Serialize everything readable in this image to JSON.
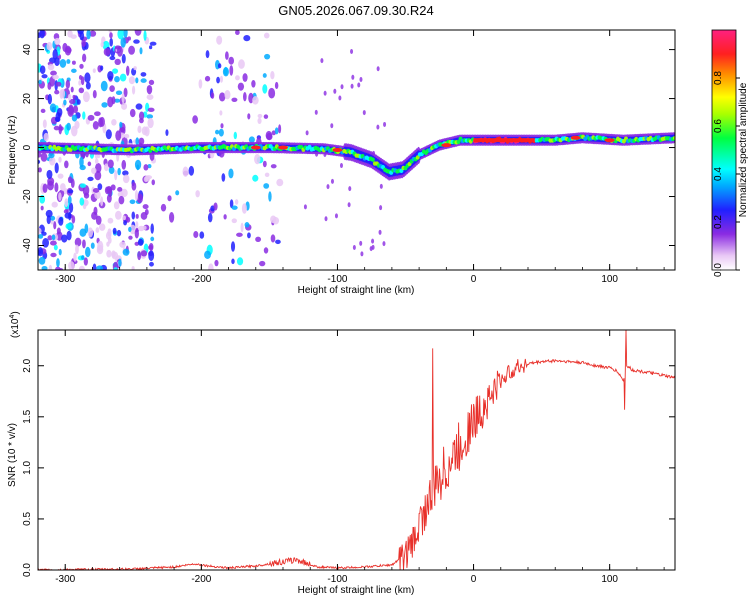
{
  "chart_data": [
    {
      "type": "heatmap",
      "title": "GN05.2026.067.09.30.R24",
      "xlabel": "Height of straight line (km)",
      "ylabel": "Frequency (Hz)",
      "xlim": [
        -320,
        148
      ],
      "ylim": [
        -50,
        48
      ],
      "xticks": [
        -300,
        -200,
        -100,
        0,
        100
      ],
      "yticks": [
        -40,
        -20,
        0,
        20,
        40
      ],
      "colorbar": {
        "label": "Normalized spectral amplitude",
        "range": [
          0,
          1
        ],
        "ticks": [
          0.0,
          0.2,
          0.4,
          0.6,
          0.8
        ],
        "tick_labels": [
          "0.0",
          "0.2",
          "0.4",
          "0.6",
          "0.8"
        ]
      },
      "ridge": [
        {
          "x": -320,
          "f": 0
        },
        {
          "x": -250,
          "f": -1
        },
        {
          "x": -200,
          "f": 0
        },
        {
          "x": -150,
          "f": 0
        },
        {
          "x": -110,
          "f": -0.5
        },
        {
          "x": -90,
          "f": -2
        },
        {
          "x": -75,
          "f": -5
        },
        {
          "x": -62,
          "f": -10
        },
        {
          "x": -52,
          "f": -9
        },
        {
          "x": -40,
          "f": -3
        },
        {
          "x": -25,
          "f": 1
        },
        {
          "x": -10,
          "f": 3
        },
        {
          "x": 0,
          "f": 3
        },
        {
          "x": 40,
          "f": 3
        },
        {
          "x": 60,
          "f": 3
        },
        {
          "x": 80,
          "f": 4
        },
        {
          "x": 110,
          "f": 3
        },
        {
          "x": 148,
          "f": 4
        }
      ]
    },
    {
      "type": "line",
      "xlabel": "Height of straight line (km)",
      "ylabel": "SNR (10 * v/v)",
      "multiplier_label": "(x10",
      "multiplier_exp": "4",
      "multiplier_close": ")",
      "xlim": [
        -320,
        148
      ],
      "ylim": [
        0,
        2.35
      ],
      "xticks": [
        -300,
        -200,
        -100,
        0,
        100
      ],
      "yticks": [
        0.0,
        0.5,
        1.0,
        1.5,
        2.0
      ],
      "ytick_labels": [
        "0.0",
        "0.5",
        "1.0",
        "1.5",
        "2.0"
      ],
      "color": "#e8302a",
      "series": [
        {
          "name": "SNR",
          "x": [
            -320,
            -250,
            -220,
            -205,
            -195,
            -180,
            -160,
            -140,
            -130,
            -115,
            -100,
            -80,
            -70,
            -60,
            -50,
            -45,
            -40,
            -35,
            -30,
            -25,
            -20,
            -15,
            -10,
            -5,
            0,
            5,
            10,
            15,
            20,
            25,
            30,
            35,
            40,
            50,
            60,
            70,
            80,
            90,
            100,
            105,
            108,
            110,
            112,
            114,
            116,
            120,
            130,
            148
          ],
          "y": [
            0.0,
            0.01,
            0.03,
            0.06,
            0.04,
            0.02,
            0.04,
            0.08,
            0.1,
            0.03,
            0.02,
            0.03,
            0.04,
            0.05,
            0.15,
            0.25,
            0.45,
            0.6,
            0.75,
            0.9,
            1.0,
            1.1,
            1.2,
            1.35,
            1.45,
            1.55,
            1.65,
            1.75,
            1.85,
            1.92,
            1.97,
            2.0,
            2.02,
            2.04,
            2.05,
            2.04,
            2.03,
            2.0,
            1.98,
            1.95,
            1.9,
            1.85,
            1.98,
            2.0,
            1.96,
            1.95,
            1.93,
            1.88
          ]
        }
      ],
      "spikes": [
        {
          "x": -30,
          "y": 2.17
        },
        {
          "x": 112,
          "y": 2.35
        },
        {
          "x": 111,
          "y": 1.57
        }
      ]
    }
  ]
}
